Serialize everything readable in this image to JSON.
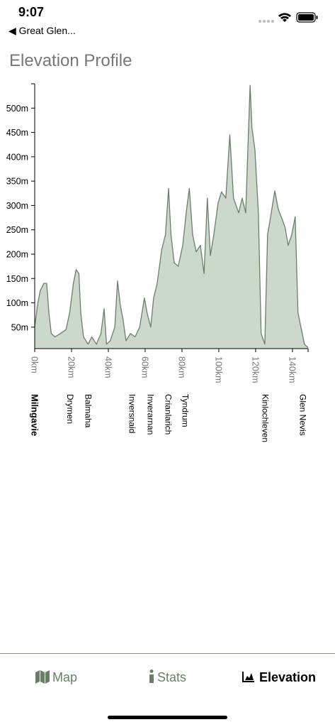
{
  "status_bar": {
    "time": "9:07"
  },
  "nav": {
    "back": "◀ Great Glen..."
  },
  "page_title": "Elevation Profile",
  "chart_data": {
    "type": "area",
    "color": "#cdd8cc",
    "line_color": "#6b7f68",
    "x": [
      0,
      1.5,
      3,
      5,
      6.5,
      7.7,
      9,
      11,
      14,
      17,
      19,
      21,
      22.5,
      24,
      25,
      26.5,
      29,
      31,
      33.5,
      36,
      37.7,
      39,
      41,
      43.5,
      45,
      46.5,
      48,
      49.6,
      52,
      54.5,
      57,
      59.6,
      61,
      63,
      64.6,
      66.5,
      69,
      71,
      72.7,
      74,
      75.8,
      78,
      80.4,
      82.3,
      84,
      85.8,
      87.7,
      90,
      92,
      93.8,
      95.4,
      97.3,
      99.6,
      101.5,
      103.8,
      106,
      108,
      110.8,
      112.7,
      114.6,
      117,
      118,
      119.6,
      121.5,
      123,
      125,
      126.5,
      128.5,
      130.4,
      132.3,
      134.6,
      136,
      137.7,
      139.6,
      141.5,
      143,
      144.6,
      146.5,
      148.5
    ],
    "values": [
      50,
      95,
      125,
      140,
      140,
      80,
      37,
      30,
      37,
      45,
      80,
      140,
      168,
      160,
      80,
      30,
      15,
      30,
      15,
      37,
      88,
      15,
      22,
      50,
      145,
      95,
      65,
      22,
      37,
      30,
      50,
      110,
      80,
      50,
      110,
      140,
      210,
      240,
      335,
      240,
      182,
      175,
      218,
      285,
      335,
      240,
      205,
      218,
      160,
      315,
      197,
      240,
      305,
      328,
      315,
      445,
      315,
      285,
      315,
      285,
      547,
      460,
      415,
      285,
      37,
      15,
      240,
      285,
      330,
      292,
      270,
      255,
      218,
      240,
      277,
      80,
      50,
      15,
      8
    ],
    "xlim": [
      0,
      148.5
    ],
    "ylim": [
      6,
      550
    ],
    "xticks": [
      {
        "value": 0,
        "label": "0km"
      },
      {
        "value": 20,
        "label": "20km"
      },
      {
        "value": 40,
        "label": "40km"
      },
      {
        "value": 60,
        "label": "60km"
      },
      {
        "value": 80,
        "label": "80km"
      },
      {
        "value": 100,
        "label": "100km"
      },
      {
        "value": 120,
        "label": "120km"
      },
      {
        "value": 140,
        "label": "140km"
      }
    ],
    "yticks": [
      {
        "value": 50,
        "label": "50m"
      },
      {
        "value": 100,
        "label": "100m"
      },
      {
        "value": 150,
        "label": "150m"
      },
      {
        "value": 200,
        "label": "200m"
      },
      {
        "value": 250,
        "label": "250m"
      },
      {
        "value": 300,
        "label": "300m"
      },
      {
        "value": 350,
        "label": "350m"
      },
      {
        "value": 400,
        "label": "400m"
      },
      {
        "value": 450,
        "label": "450m"
      },
      {
        "value": 500,
        "label": "500m"
      }
    ],
    "places": [
      {
        "name": "Milngavie",
        "km": 0,
        "selected": true
      },
      {
        "name": "Drymen",
        "km": 19.5
      },
      {
        "name": "Balmaha",
        "km": 29.2
      },
      {
        "name": "Inversnaid",
        "km": 53
      },
      {
        "name": "Inverarnan",
        "km": 63
      },
      {
        "name": "Crianlarich",
        "km": 72.7
      },
      {
        "name": "Tyndrum",
        "km": 81.9
      },
      {
        "name": "Kinlochleven",
        "km": 125.4
      },
      {
        "name": "Glen Nevis",
        "km": 145.8
      }
    ]
  },
  "tabs": [
    {
      "label": "Map",
      "selected": false
    },
    {
      "label": "Stats",
      "selected": false
    },
    {
      "label": "Elevation",
      "selected": true
    }
  ]
}
